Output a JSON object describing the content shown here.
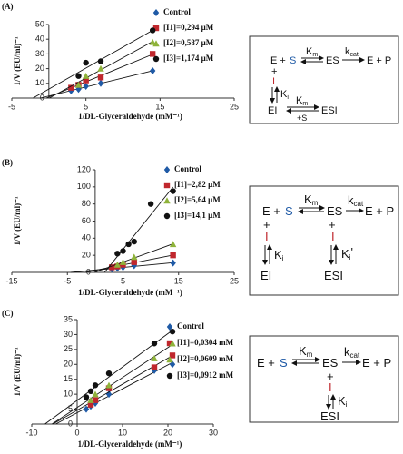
{
  "chart_data": [
    {
      "type": "scatter",
      "panel_label": "(A)",
      "xlabel": "1/DL-Glyceraldehyde  (mM⁻¹)",
      "ylabel": "1/V (EU/ml)⁻¹",
      "xlim": [
        -5,
        25
      ],
      "xticks": [
        -5,
        5,
        15,
        25
      ],
      "ylim": [
        0,
        50
      ],
      "yticks": [
        0,
        10,
        20,
        30,
        40,
        50
      ],
      "trendline": true,
      "series": [
        {
          "name": "Control",
          "color": "#1f5aa6",
          "marker": "diamond",
          "x": [
            3,
            4,
            5,
            7,
            14
          ],
          "values": [
            5,
            6,
            8,
            10,
            18.5
          ]
        },
        {
          "name": "[I1]=0,294 μM",
          "color": "#c0272d",
          "marker": "square",
          "x": [
            3,
            4,
            5,
            7,
            14
          ],
          "values": [
            7,
            9,
            12,
            14,
            30
          ]
        },
        {
          "name": "[I2]=0,587 μM",
          "color": "#8fb33a",
          "marker": "triangle",
          "x": [
            4,
            5,
            7,
            14
          ],
          "values": [
            9,
            15,
            20,
            38
          ]
        },
        {
          "name": "[I3]=1,174 μM",
          "color": "#111111",
          "marker": "circle",
          "x": [
            4,
            5,
            7,
            14
          ],
          "values": [
            15,
            24,
            25,
            46
          ]
        }
      ]
    },
    {
      "type": "scatter",
      "panel_label": "(B)",
      "xlabel": "1/DL-Glyceraldehyde  (mM⁻¹)",
      "ylabel": "1/V (EU/ml)⁻¹",
      "xlim": [
        -15,
        25
      ],
      "xticks": [
        -15,
        -5,
        5,
        15,
        25
      ],
      "ylim": [
        0,
        120
      ],
      "yticks": [
        0,
        20,
        40,
        60,
        80,
        100,
        120
      ],
      "trendline": true,
      "series": [
        {
          "name": "Control",
          "color": "#1f5aa6",
          "marker": "diamond",
          "x": [
            3,
            4,
            5,
            7,
            14
          ],
          "values": [
            4,
            5,
            6,
            8,
            11
          ]
        },
        {
          "name": "[I1]=2,82 μM",
          "color": "#c0272d",
          "marker": "square",
          "x": [
            3,
            4,
            5,
            7,
            14
          ],
          "values": [
            6,
            7,
            9,
            12,
            20
          ]
        },
        {
          "name": "[I2]=5,64 μM",
          "color": "#8fb33a",
          "marker": "triangle",
          "x": [
            4,
            5,
            7,
            14
          ],
          "values": [
            9,
            12,
            18,
            33
          ]
        },
        {
          "name": "[I3]=14,1 μM",
          "color": "#111111",
          "marker": "circle",
          "x": [
            4,
            5,
            6,
            7,
            10,
            14
          ],
          "values": [
            22,
            25,
            33,
            36,
            80,
            95
          ]
        }
      ]
    },
    {
      "type": "scatter",
      "panel_label": "(C)",
      "xlabel": "1/DL-Glyceraldehyde  (mM⁻¹)",
      "ylabel": "1/V (EU/ml)⁻¹",
      "xlim": [
        -10,
        30
      ],
      "xticks": [
        -10,
        0,
        10,
        20,
        30
      ],
      "ylim": [
        0,
        35
      ],
      "yticks": [
        0,
        5,
        10,
        15,
        20,
        25,
        30,
        35
      ],
      "trendline": true,
      "series": [
        {
          "name": "Control",
          "color": "#1f5aa6",
          "marker": "diamond",
          "x": [
            2,
            3,
            4,
            7,
            17,
            21
          ],
          "values": [
            5,
            6,
            7,
            10,
            18,
            20
          ]
        },
        {
          "name": "[I1]=0,0304 mM",
          "color": "#c0272d",
          "marker": "square",
          "x": [
            3,
            4,
            7,
            17,
            21
          ],
          "values": [
            6.5,
            8,
            12,
            19,
            23
          ]
        },
        {
          "name": "[I2]=0,0609 mM",
          "color": "#8fb33a",
          "marker": "triangle",
          "x": [
            3,
            4,
            7,
            17,
            21
          ],
          "values": [
            8,
            10,
            13,
            22,
            27
          ]
        },
        {
          "name": "[I3]=0,0912 mM",
          "color": "#111111",
          "marker": "circle",
          "x": [
            2,
            3,
            4,
            7,
            17,
            21
          ],
          "values": [
            9,
            11,
            13,
            17,
            27,
            31
          ]
        }
      ]
    }
  ],
  "schemes": [
    {
      "tokens": [
        "E +",
        "S",
        "K",
        "m",
        "ES",
        "k",
        "cat",
        "E + P",
        "+",
        "I",
        "K",
        "i",
        "EI",
        "K",
        "m",
        "+S",
        "ESI"
      ]
    },
    {
      "tokens": [
        "E +",
        "S",
        "K",
        "m",
        "ES",
        "k",
        "cat",
        "E + P",
        "+",
        "I",
        "K",
        "i",
        "EI",
        "+",
        "I",
        "K",
        "i",
        "'",
        "ESI"
      ]
    },
    {
      "tokens": [
        "E +",
        "S",
        "K",
        "m",
        "ES",
        "k",
        "cat",
        "E + P",
        "+",
        "I",
        "K",
        "i",
        "ESI"
      ]
    }
  ]
}
